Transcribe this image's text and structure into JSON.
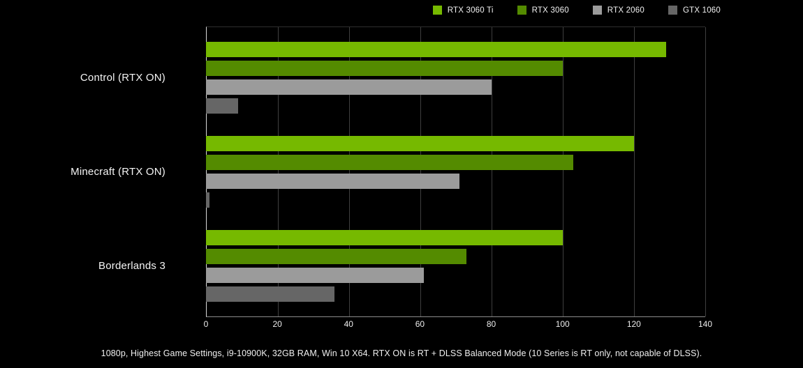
{
  "chart_data": {
    "type": "bar",
    "orientation": "horizontal",
    "title": "",
    "categories": [
      "Control (RTX ON)",
      "Minecraft (RTX ON)",
      "Borderlands 3"
    ],
    "series": [
      {
        "name": "RTX 3060 Ti",
        "color": "#76b900",
        "values": [
          129,
          120,
          100
        ]
      },
      {
        "name": "RTX 3060",
        "color": "#548b00",
        "values": [
          100,
          103,
          73
        ]
      },
      {
        "name": "RTX 2060",
        "color": "#9b9b9b",
        "values": [
          80,
          71,
          61
        ]
      },
      {
        "name": "GTX 1060",
        "color": "#666666",
        "values": [
          9,
          1,
          36
        ]
      }
    ],
    "xlim": [
      0,
      140
    ],
    "x_ticks": [
      0,
      20,
      40,
      60,
      80,
      100,
      120,
      140
    ],
    "grid": true,
    "legend_position": "top-right"
  },
  "caption": "1080p, Highest Game Settings, i9-10900K, 32GB RAM, Win 10 X64. RTX ON is RT + DLSS Balanced Mode (10 Series is RT only, not capable of DLSS).",
  "colors": {
    "background": "#000000",
    "text": "#ffffff",
    "gridline": "#3f3f3f",
    "axis_line": "#8c8c8c",
    "zero_axis": "#d9d9d9"
  }
}
